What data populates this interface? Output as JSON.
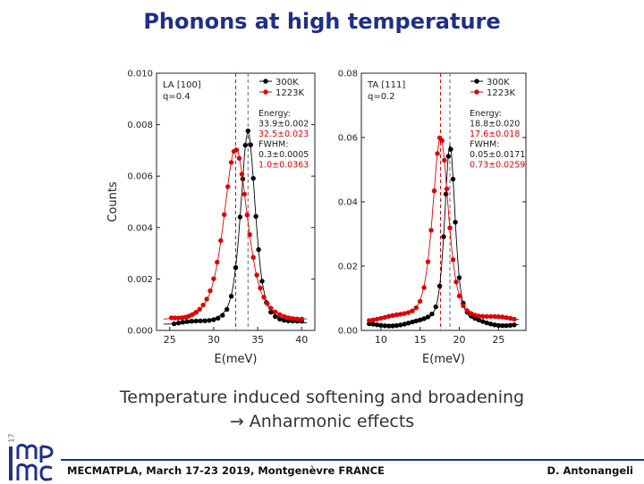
{
  "slide": {
    "title": "Phonons at high temperature",
    "caption_line1": "Temperature induced softening and broadening",
    "caption_line2": "→ Anharmonic effects",
    "footer_left": "MECMATPLA, March 17-23 2019, Montgenèvre FRANCE",
    "footer_right": "D. Antonangeli",
    "page_number": "17",
    "logo_text": "IMPMC"
  },
  "colors": {
    "title": "#1f2f8a",
    "series_300K": "#000000",
    "series_1223K": "#e00000"
  },
  "chart_data": [
    {
      "type": "scatter",
      "mode": "LA",
      "panel_label": "LA [100]",
      "q_label": "q=0.4",
      "xlabel": "E(meV)",
      "ylabel": "Counts",
      "xlim": [
        23.5,
        41.5
      ],
      "ylim": [
        0,
        0.01
      ],
      "xticks": [
        "25",
        "30",
        "35",
        "40"
      ],
      "xtick_values": [
        25,
        30,
        35,
        40
      ],
      "yticks": [
        "0.000",
        "0.002",
        "0.004",
        "0.006",
        "0.008",
        "0.010"
      ],
      "ytick_values": [
        0,
        0.002,
        0.004,
        0.006,
        0.008,
        0.01
      ],
      "legend": {
        "position": "top-right",
        "entries": [
          "300K",
          "1223K"
        ]
      },
      "annotations": {
        "energy_label": "Energy:",
        "energy_300K": "33.9±0.002",
        "energy_1223K": "32.5±0.023",
        "fwhm_label": "FWHM:",
        "fwhm_300K": "0.3±0.0005",
        "fwhm_1223K": "1.0±0.0363"
      },
      "series": [
        {
          "name": "300K",
          "color": "#000000",
          "center": 33.9,
          "fwhm": 2.0,
          "amp": 0.0075,
          "base": 0.0002,
          "sigma_ratio": 1.3,
          "x": [
            25.5,
            26,
            26.5,
            27,
            27.5,
            28,
            28.5,
            29,
            29.5,
            30,
            30.5,
            31,
            31.5,
            32,
            32.5,
            33,
            33.3,
            33.6,
            33.9,
            34.2,
            34.5,
            34.8,
            35.1,
            35.5,
            36,
            36.5,
            37,
            37.5,
            38,
            38.5,
            39,
            39.5,
            40
          ]
        },
        {
          "name": "1223K",
          "color": "#e00000",
          "center": 32.5,
          "fwhm": 3.2,
          "amp": 0.0068,
          "base": 0.0003,
          "sigma_ratio": 1.3,
          "x": [
            25.2,
            25.6,
            26,
            26.4,
            26.8,
            27.2,
            27.6,
            28,
            28.4,
            28.8,
            29.2,
            29.6,
            30,
            30.4,
            30.8,
            31.2,
            31.6,
            32,
            32.3,
            32.6,
            32.9,
            33.2,
            33.5,
            33.8,
            34.1,
            34.5,
            34.9,
            35.3,
            35.7,
            36.1,
            36.5,
            37,
            37.5,
            38,
            38.5,
            39,
            39.5,
            40
          ]
        }
      ],
      "dashed_lines": [
        {
          "x": 32.5,
          "color": "#e00000"
        },
        {
          "x": 33.9,
          "color": "#666666"
        }
      ]
    },
    {
      "type": "scatter",
      "mode": "TA",
      "panel_label": "TA [111]",
      "q_label": "q=0.2",
      "xlabel": "E(meV)",
      "ylabel": "",
      "xlim": [
        7.5,
        28.5
      ],
      "ylim": [
        0,
        0.08
      ],
      "xticks": [
        "10",
        "15",
        "20",
        "25"
      ],
      "xtick_values": [
        10,
        15,
        20,
        25
      ],
      "yticks": [
        "0.00",
        "0.02",
        "0.04",
        "0.06",
        "0.08"
      ],
      "ytick_values": [
        0,
        0.02,
        0.04,
        0.06,
        0.08
      ],
      "legend": {
        "position": "top-right",
        "entries": [
          "300K",
          "1223K"
        ]
      },
      "annotations": {
        "energy_label": "Energy:",
        "energy_300K": "18.8±0.020",
        "energy_1223K": "17.6±0.018",
        "fwhm_label": "FWHM:",
        "fwhm_300K": "0.05±0.0171",
        "fwhm_1223K": "0.73±0.0259"
      },
      "series": [
        {
          "name": "300K",
          "color": "#000000",
          "center": 18.8,
          "fwhm": 1.6,
          "amp": 0.056,
          "base": 0.0015,
          "sigma_ratio": 1.3,
          "x": [
            8.5,
            9,
            9.5,
            10,
            10.5,
            11,
            11.5,
            12,
            12.5,
            13,
            13.5,
            14,
            14.5,
            15,
            15.5,
            16,
            16.5,
            17,
            17.5,
            18,
            18.3,
            18.6,
            18.9,
            19.2,
            19.5,
            20,
            20.5,
            21,
            21.5,
            22,
            22.5,
            23,
            23.5,
            24,
            24.5,
            25,
            25.5,
            26,
            26.5,
            27
          ]
        },
        {
          "name": "1223K",
          "color": "#e00000",
          "center": 17.6,
          "fwhm": 2.4,
          "amp": 0.057,
          "base": 0.003,
          "sigma_ratio": 1.3,
          "x": [
            8.5,
            9,
            9.5,
            10,
            10.5,
            11,
            11.5,
            12,
            12.5,
            13,
            13.5,
            14,
            14.5,
            15,
            15.5,
            16,
            16.4,
            16.8,
            17.2,
            17.5,
            17.8,
            18.1,
            18.4,
            18.8,
            19.2,
            19.6,
            20,
            20.5,
            21,
            21.5,
            22,
            22.5,
            23,
            23.5,
            24,
            24.5,
            25,
            25.5,
            26,
            26.5,
            27
          ]
        }
      ],
      "dashed_lines": [
        {
          "x": 17.6,
          "color": "#e00000"
        },
        {
          "x": 18.8,
          "color": "#666666"
        }
      ]
    }
  ]
}
